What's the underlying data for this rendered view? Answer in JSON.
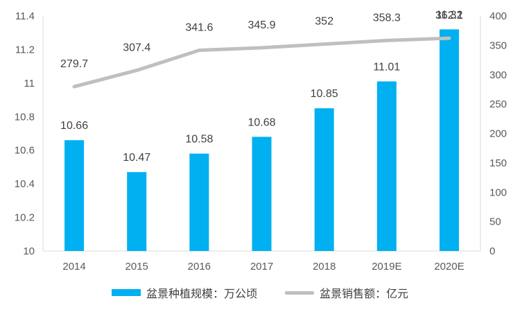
{
  "chart_data": {
    "type": "bar",
    "categories": [
      "2014",
      "2015",
      "2016",
      "2017",
      "2018",
      "2019E",
      "2020E"
    ],
    "series": [
      {
        "name": "盆景种植规模：万公顷",
        "type": "bar",
        "axis": "left",
        "values": [
          10.66,
          10.47,
          10.58,
          10.68,
          10.85,
          11.01,
          11.32
        ],
        "labels": [
          "10.66",
          "10.47",
          "10.58",
          "10.68",
          "10.85",
          "11.01",
          "11.32"
        ],
        "color": "#00B0F0"
      },
      {
        "name": "盆景销售额：亿元",
        "type": "line",
        "axis": "right",
        "values": [
          279.7,
          307.4,
          341.6,
          345.9,
          352,
          358.3,
          362.1
        ],
        "labels": [
          "279.7",
          "307.4",
          "341.6",
          "345.9",
          "352",
          "358.3",
          "362.1"
        ],
        "color": "#BFBFBF"
      }
    ],
    "y_left": {
      "ylim": [
        10,
        11.4
      ],
      "ticks": [
        "10",
        "10.2",
        "10.4",
        "10.6",
        "10.8",
        "11",
        "11.2",
        "11.4"
      ]
    },
    "y_right": {
      "ylim": [
        0,
        400
      ],
      "ticks": [
        "0",
        "50",
        "100",
        "150",
        "200",
        "250",
        "300",
        "350",
        "400"
      ]
    },
    "grid": false,
    "legend": "bottom"
  }
}
